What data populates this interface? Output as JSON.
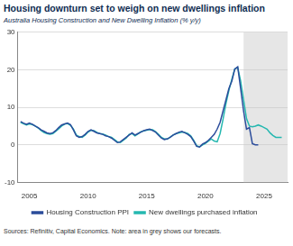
{
  "chart_data": {
    "type": "line",
    "title": "Housing downturn set to weigh on new dwellings inflation",
    "subtitle": "Australia Housing Construction and New Dwelling Inflation (% y/y)",
    "source": "Sources: Refinitiv, Capital Economics. Note: area in grey shows our forecasts.",
    "x": [
      2004.25,
      2004.5,
      2004.75,
      2005,
      2005.25,
      2005.5,
      2005.75,
      2006,
      2006.25,
      2006.5,
      2006.75,
      2007,
      2007.25,
      2007.5,
      2007.75,
      2008,
      2008.25,
      2008.5,
      2008.75,
      2009,
      2009.25,
      2009.5,
      2009.75,
      2010,
      2010.25,
      2010.5,
      2010.75,
      2011,
      2011.25,
      2011.5,
      2011.75,
      2012,
      2012.25,
      2012.5,
      2012.75,
      2013,
      2013.25,
      2013.5,
      2013.75,
      2014,
      2014.25,
      2014.5,
      2014.75,
      2015,
      2015.25,
      2015.5,
      2015.75,
      2016,
      2016.25,
      2016.5,
      2016.75,
      2017,
      2017.25,
      2017.5,
      2017.75,
      2018,
      2018.25,
      2018.5,
      2018.75,
      2019,
      2019.25,
      2019.5,
      2019.75,
      2020,
      2020.25,
      2020.5,
      2020.75,
      2021,
      2021.25,
      2021.5,
      2021.75,
      2022,
      2022.25,
      2022.5,
      2022.75,
      2023,
      2023.25,
      2023.5,
      2023.75,
      2024,
      2024.25,
      2024.5,
      2024.75,
      2025,
      2025.25,
      2025.5,
      2025.75,
      2026,
      2026.25,
      2026.5
    ],
    "series": [
      {
        "name": "Housing Construction PPI",
        "color": "#2b4c9b",
        "values": [
          6.2,
          5.8,
          5.5,
          5.8,
          5.5,
          5.0,
          4.6,
          4.0,
          3.6,
          3.2,
          3.0,
          3.2,
          3.8,
          4.6,
          5.3,
          5.6,
          5.8,
          5.4,
          4.0,
          2.4,
          2.0,
          2.2,
          2.8,
          3.6,
          4.0,
          3.6,
          3.2,
          3.0,
          2.8,
          2.4,
          2.2,
          1.8,
          1.2,
          0.6,
          0.8,
          1.4,
          2.0,
          2.6,
          3.2,
          2.6,
          3.0,
          3.4,
          3.8,
          4.0,
          4.2,
          3.8,
          3.4,
          2.6,
          1.8,
          1.4,
          1.6,
          2.0,
          2.6,
          3.0,
          3.4,
          3.6,
          3.2,
          2.8,
          2.2,
          1.0,
          -0.4,
          -0.6,
          0.2,
          0.6,
          1.2,
          2.0,
          2.8,
          4.2,
          6.0,
          9.0,
          12.0,
          15.0,
          17.0,
          20.2,
          20.8,
          15.0,
          9.0,
          4.2,
          4.6,
          0.3,
          0.0,
          0.0,
          null,
          null,
          null,
          null,
          null,
          null,
          null,
          null
        ]
      },
      {
        "name": "New dwellings purchased inflation",
        "color": "#25b8b0",
        "values": [
          6.0,
          5.6,
          5.3,
          5.6,
          5.4,
          5.0,
          4.5,
          3.8,
          3.3,
          3.0,
          2.8,
          3.0,
          3.6,
          4.3,
          5.0,
          5.5,
          5.7,
          5.2,
          4.2,
          2.6,
          2.2,
          2.0,
          2.6,
          3.4,
          3.9,
          3.8,
          3.3,
          3.0,
          2.9,
          2.6,
          2.2,
          2.0,
          1.4,
          0.8,
          0.6,
          1.2,
          1.8,
          2.8,
          3.0,
          2.4,
          2.9,
          3.5,
          3.7,
          3.9,
          4.1,
          4.0,
          3.5,
          2.8,
          2.0,
          1.6,
          1.5,
          2.1,
          2.6,
          3.0,
          3.2,
          3.4,
          3.3,
          3.0,
          2.4,
          1.2,
          -0.2,
          -0.5,
          0.0,
          0.4,
          1.0,
          1.6,
          1.0,
          0.8,
          3.0,
          6.8,
          11.0,
          14.5,
          17.5,
          20.2,
          20.6,
          17.0,
          12.0,
          7.0,
          5.0,
          4.8,
          5.0,
          5.3,
          5.0,
          4.6,
          4.2,
          3.2,
          2.5,
          2.0,
          2.0,
          2.0
        ]
      }
    ],
    "forecast_region": [
      2023.25,
      2027
    ],
    "xlim": [
      2004,
      2027
    ],
    "xticks": [
      2005,
      2010,
      2015,
      2020,
      2025
    ],
    "ylim": [
      -10,
      30
    ],
    "yticks": [
      -10,
      0,
      10,
      20,
      30
    ],
    "grid": true,
    "legend": "bottom"
  }
}
